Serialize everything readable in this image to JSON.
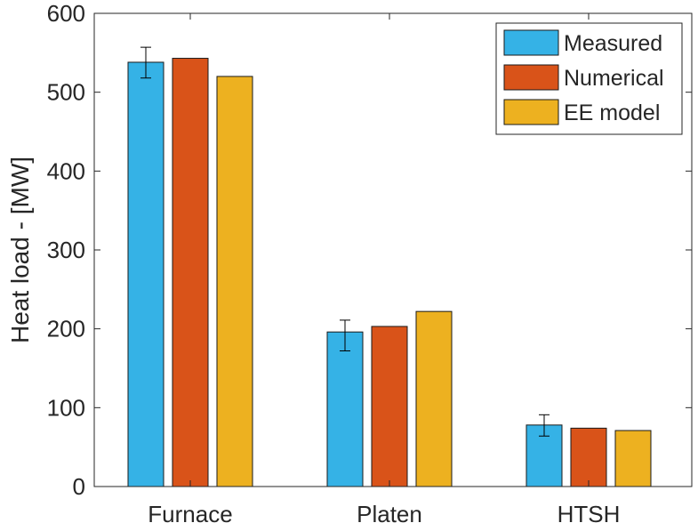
{
  "chart_data": {
    "type": "bar",
    "title": "",
    "xlabel": "",
    "ylabel": "Heat load - [MW]",
    "categories": [
      "Furnace",
      "Platen",
      "HTSH"
    ],
    "ylim": [
      0,
      600
    ],
    "yticks": [
      0,
      100,
      200,
      300,
      400,
      500,
      600
    ],
    "grid": false,
    "legend_position": "top-right",
    "series": [
      {
        "name": "Measured",
        "color": "#35b2e6",
        "values": [
          538,
          196,
          78
        ],
        "error": [
          [
            518,
            557
          ],
          [
            172,
            211
          ],
          [
            64,
            91
          ]
        ]
      },
      {
        "name": "Numerical",
        "color": "#d95319",
        "values": [
          543,
          203,
          74
        ]
      },
      {
        "name": "EE model",
        "color": "#edb120",
        "values": [
          520,
          222,
          71
        ]
      }
    ]
  }
}
